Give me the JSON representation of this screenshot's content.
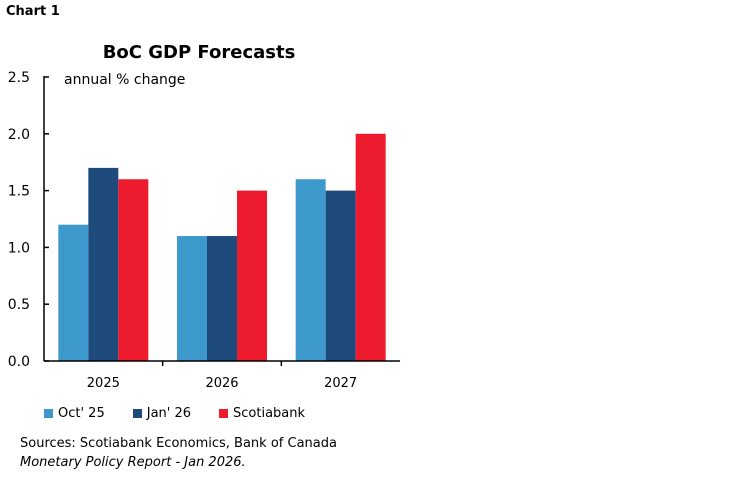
{
  "chart_label": "Chart 1",
  "chart_data": {
    "type": "bar",
    "title": "BoC GDP Forecasts",
    "ylabel": "annual % change",
    "categories": [
      "2025",
      "2026",
      "2027"
    ],
    "series": [
      {
        "name": "Oct' 25",
        "color": "#3d98cb",
        "values": [
          1.2,
          1.1,
          1.6
        ]
      },
      {
        "name": "Jan' 26",
        "color": "#1f4a7c",
        "values": [
          1.7,
          1.1,
          1.5
        ]
      },
      {
        "name": "Scotiabank",
        "color": "#ec1b2e",
        "values": [
          1.6,
          1.5,
          2.0
        ]
      }
    ],
    "ylim": [
      0,
      2.5
    ],
    "yticks": [
      "0.0",
      "0.5",
      "1.0",
      "1.5",
      "2.0",
      "2.5"
    ],
    "grid": false,
    "legend": "bottom"
  },
  "sources": {
    "line1": "Sources: Scotiabank Economics, Bank of Canada",
    "line2": "Monetary Policy Report - Jan 2026."
  }
}
